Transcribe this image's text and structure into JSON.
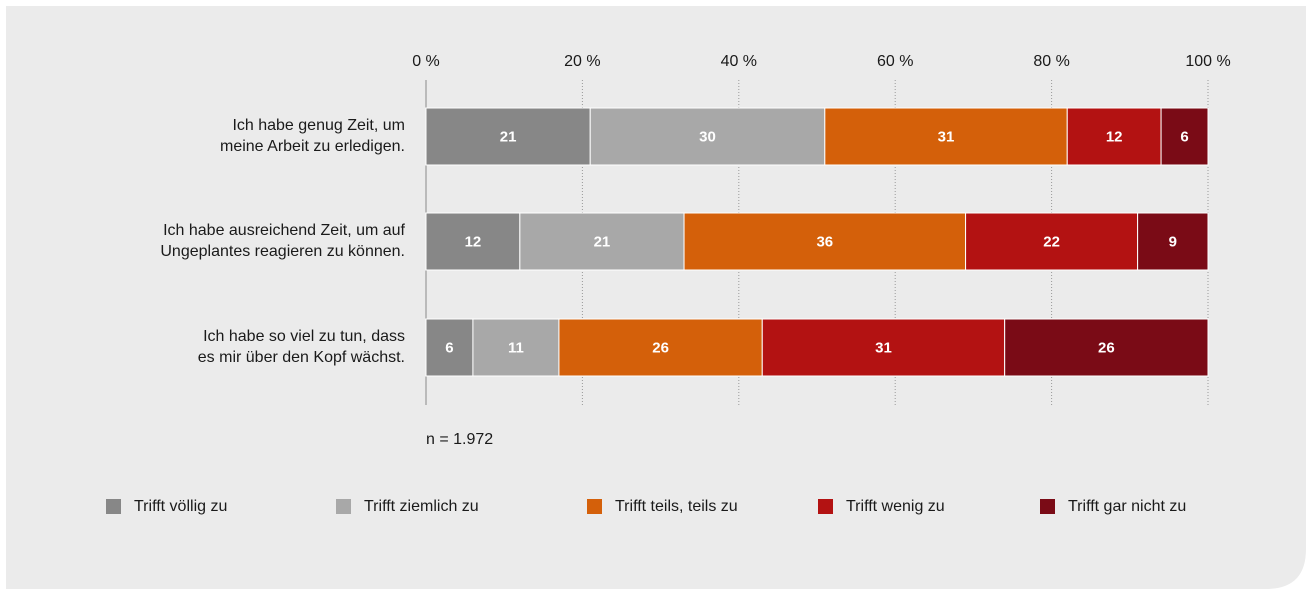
{
  "chart_data": {
    "type": "stacked-bar-horizontal",
    "categories": [
      [
        "Ich habe genug Zeit, um",
        "meine Arbeit zu erledigen."
      ],
      [
        "Ich habe ausreichend Zeit, um auf",
        "Ungeplantes reagieren zu können."
      ],
      [
        "Ich habe so viel zu tun, dass",
        "es mir über den Kopf wächst."
      ]
    ],
    "series": [
      {
        "name": "Trifft völlig zu",
        "color": "#878787",
        "values": [
          21,
          12,
          6
        ]
      },
      {
        "name": "Trifft ziemlich zu",
        "color": "#a8a8a8",
        "values": [
          30,
          21,
          11
        ]
      },
      {
        "name": "Trifft teils, teils zu",
        "color": "#d4600a",
        "values": [
          31,
          36,
          26
        ]
      },
      {
        "name": "Trifft wenig zu",
        "color": "#b31212",
        "values": [
          12,
          22,
          31
        ]
      },
      {
        "name": "Trifft gar nicht zu",
        "color": "#7a0b16",
        "values": [
          6,
          9,
          26
        ]
      }
    ],
    "xlim": [
      0,
      100
    ],
    "xticks": [
      {
        "value": 0,
        "label": "0 %"
      },
      {
        "value": 20,
        "label": "20 %"
      },
      {
        "value": 40,
        "label": "40 %"
      },
      {
        "value": 60,
        "label": "60 %"
      },
      {
        "value": 80,
        "label": "80 %"
      },
      {
        "value": 100,
        "label": "100 %"
      }
    ],
    "grid": true,
    "annotation": "n = 1.972",
    "legend": "bottom"
  }
}
